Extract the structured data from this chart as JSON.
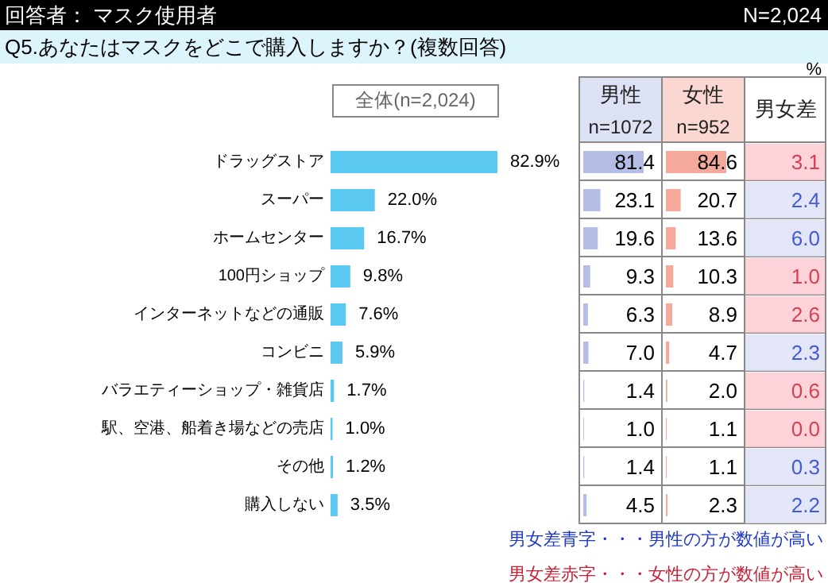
{
  "chart_data": [
    {
      "type": "bar",
      "orientation": "horizontal",
      "title": "Q5.あなたはマスクをどこで購入しますか？(複数回答)",
      "subtitle": "全体(n=2,024)",
      "annotations": [
        "回答者： マスク使用者",
        "N=2,024"
      ],
      "categories": [
        "ドラッグストア",
        "スーパー",
        "ホームセンター",
        "100円ショップ",
        "インターネットなどの通販",
        "コンビニ",
        "バラエティーショップ・雑貨店",
        "駅、空港、船着き場などの売店",
        "その他",
        "購入しない"
      ],
      "tick_labels": "y",
      "series": [
        {
          "color": "#5bc8f0",
          "values": [
            82.9,
            22.0,
            16.7,
            9.8,
            7.6,
            5.9,
            1.7,
            1.0,
            1.2,
            3.5
          ],
          "value_labels": [
            "82.9%",
            "22.0%",
            "16.7%",
            "9.8%",
            "7.6%",
            "5.9%",
            "1.7%",
            "1.0%",
            "1.2%",
            "3.5%"
          ]
        }
      ]
    },
    {
      "type": "bar",
      "orientation": "horizontal",
      "title": "男性",
      "subtitle": "n=1072",
      "categories": [
        null,
        null,
        null,
        null,
        null,
        null,
        null,
        null,
        null,
        null
      ],
      "tick_labels": false,
      "series": [
        {
          "color": "#b4bde6",
          "values": [
            81.4,
            23.1,
            19.6,
            9.3,
            6.3,
            7.0,
            1.4,
            1.0,
            1.4,
            4.5
          ],
          "value_labels": [
            "81.4",
            "23.1",
            "19.6",
            "9.3",
            "6.3",
            "7.0",
            "1.4",
            "1.0",
            "1.4",
            "4.5"
          ]
        }
      ]
    },
    {
      "type": "bar",
      "orientation": "horizontal",
      "title": "女性",
      "subtitle": "n=952",
      "categories": [
        null,
        null,
        null,
        null,
        null,
        null,
        null,
        null,
        null,
        null
      ],
      "tick_labels": false,
      "series": [
        {
          "color": "#f4a99a",
          "values": [
            84.6,
            20.7,
            13.6,
            10.3,
            8.9,
            4.7,
            2.0,
            1.1,
            1.1,
            2.3
          ],
          "value_labels": [
            "84.6",
            "20.7",
            "13.6",
            "10.3",
            "8.9",
            "4.7",
            "2.0",
            "1.1",
            "1.1",
            "2.3"
          ]
        }
      ]
    },
    {
      "type": "other",
      "title": "男女差",
      "annotations": [
        "%",
        "男女差青字・・・男性の方が数値が高い",
        "男女差赤字・・・女性の方が数値が高い"
      ],
      "categories": [
        null,
        null,
        null,
        null,
        null,
        null,
        null,
        null,
        null,
        null
      ],
      "colors": [
        "#fdc8cf",
        "#dce0f5",
        "#dce0f5",
        "#fdc8cf",
        "#fdc8cf",
        "#dce0f5",
        "#fdc8cf",
        "#fdc8cf",
        "#dce0f5",
        "#dce0f5"
      ],
      "values": [
        3.1,
        2.4,
        6.0,
        1.0,
        2.6,
        2.3,
        0.6,
        0.0,
        0.3,
        2.2
      ],
      "value_labels": [
        "3.1",
        "2.4",
        "6.0",
        "1.0",
        "2.6",
        "2.3",
        "0.6",
        "0.0",
        "0.3",
        "2.2"
      ]
    }
  ]
}
